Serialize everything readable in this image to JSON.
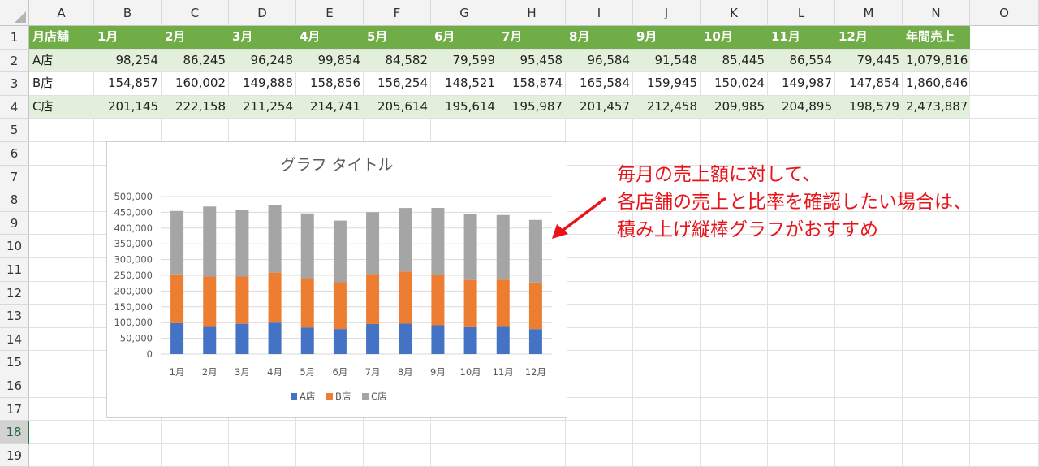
{
  "columns": [
    "A",
    "B",
    "C",
    "D",
    "E",
    "F",
    "G",
    "H",
    "I",
    "J",
    "K",
    "L",
    "M",
    "N",
    "O"
  ],
  "rows": [
    "1",
    "2",
    "3",
    "4",
    "5",
    "6",
    "7",
    "8",
    "9",
    "10",
    "11",
    "12",
    "13",
    "14",
    "15",
    "16",
    "17",
    "18",
    "19"
  ],
  "active_row": "18",
  "table": {
    "header": [
      "月店舗",
      "1月",
      "2月",
      "3月",
      "4月",
      "5月",
      "6月",
      "7月",
      "8月",
      "9月",
      "10月",
      "11月",
      "12月",
      "年間売上"
    ],
    "body": [
      [
        "A店",
        "98,254",
        "86,245",
        "96,248",
        "99,854",
        "84,582",
        "79,599",
        "95,458",
        "96,584",
        "91,548",
        "85,445",
        "86,554",
        "79,445",
        "1,079,816"
      ],
      [
        "B店",
        "154,857",
        "160,002",
        "149,888",
        "158,856",
        "156,254",
        "148,521",
        "158,874",
        "165,584",
        "159,945",
        "150,024",
        "149,987",
        "147,854",
        "1,860,646"
      ],
      [
        "C店",
        "201,145",
        "222,158",
        "211,254",
        "214,741",
        "205,614",
        "195,614",
        "195,987",
        "201,457",
        "212,458",
        "209,985",
        "204,895",
        "198,579",
        "2,473,887"
      ]
    ]
  },
  "chart_data": {
    "type": "bar",
    "stacked": true,
    "title": "グラフ タイトル",
    "categories": [
      "1月",
      "2月",
      "3月",
      "4月",
      "5月",
      "6月",
      "7月",
      "8月",
      "9月",
      "10月",
      "11月",
      "12月"
    ],
    "series": [
      {
        "name": "A店",
        "color": "#4472c4",
        "values": [
          98254,
          86245,
          96248,
          99854,
          84582,
          79599,
          95458,
          96584,
          91548,
          85445,
          86554,
          79445
        ]
      },
      {
        "name": "B店",
        "color": "#ed7d31",
        "values": [
          154857,
          160002,
          149888,
          158856,
          156254,
          148521,
          158874,
          165584,
          159945,
          150024,
          149987,
          147854
        ]
      },
      {
        "name": "C店",
        "color": "#a5a5a5",
        "values": [
          201145,
          222158,
          211254,
          214741,
          205614,
          195614,
          195987,
          201457,
          212458,
          209985,
          204895,
          198579
        ]
      }
    ],
    "ylim": [
      0,
      500000
    ],
    "yticks": [
      "500,000",
      "450,000",
      "400,000",
      "350,000",
      "300,000",
      "250,000",
      "200,000",
      "150,000",
      "100,000",
      "50,000",
      "0"
    ],
    "ytick_values": [
      500000,
      450000,
      400000,
      350000,
      300000,
      250000,
      200000,
      150000,
      100000,
      50000,
      0
    ],
    "grid": true,
    "legend": "bottom"
  },
  "annotation": {
    "lines": [
      "毎月の売上額に対して、",
      "各店舗の売上と比率を確認したい場合は、",
      "積み上げ縦棒グラフがおすすめ"
    ],
    "color": "#e8141a"
  }
}
